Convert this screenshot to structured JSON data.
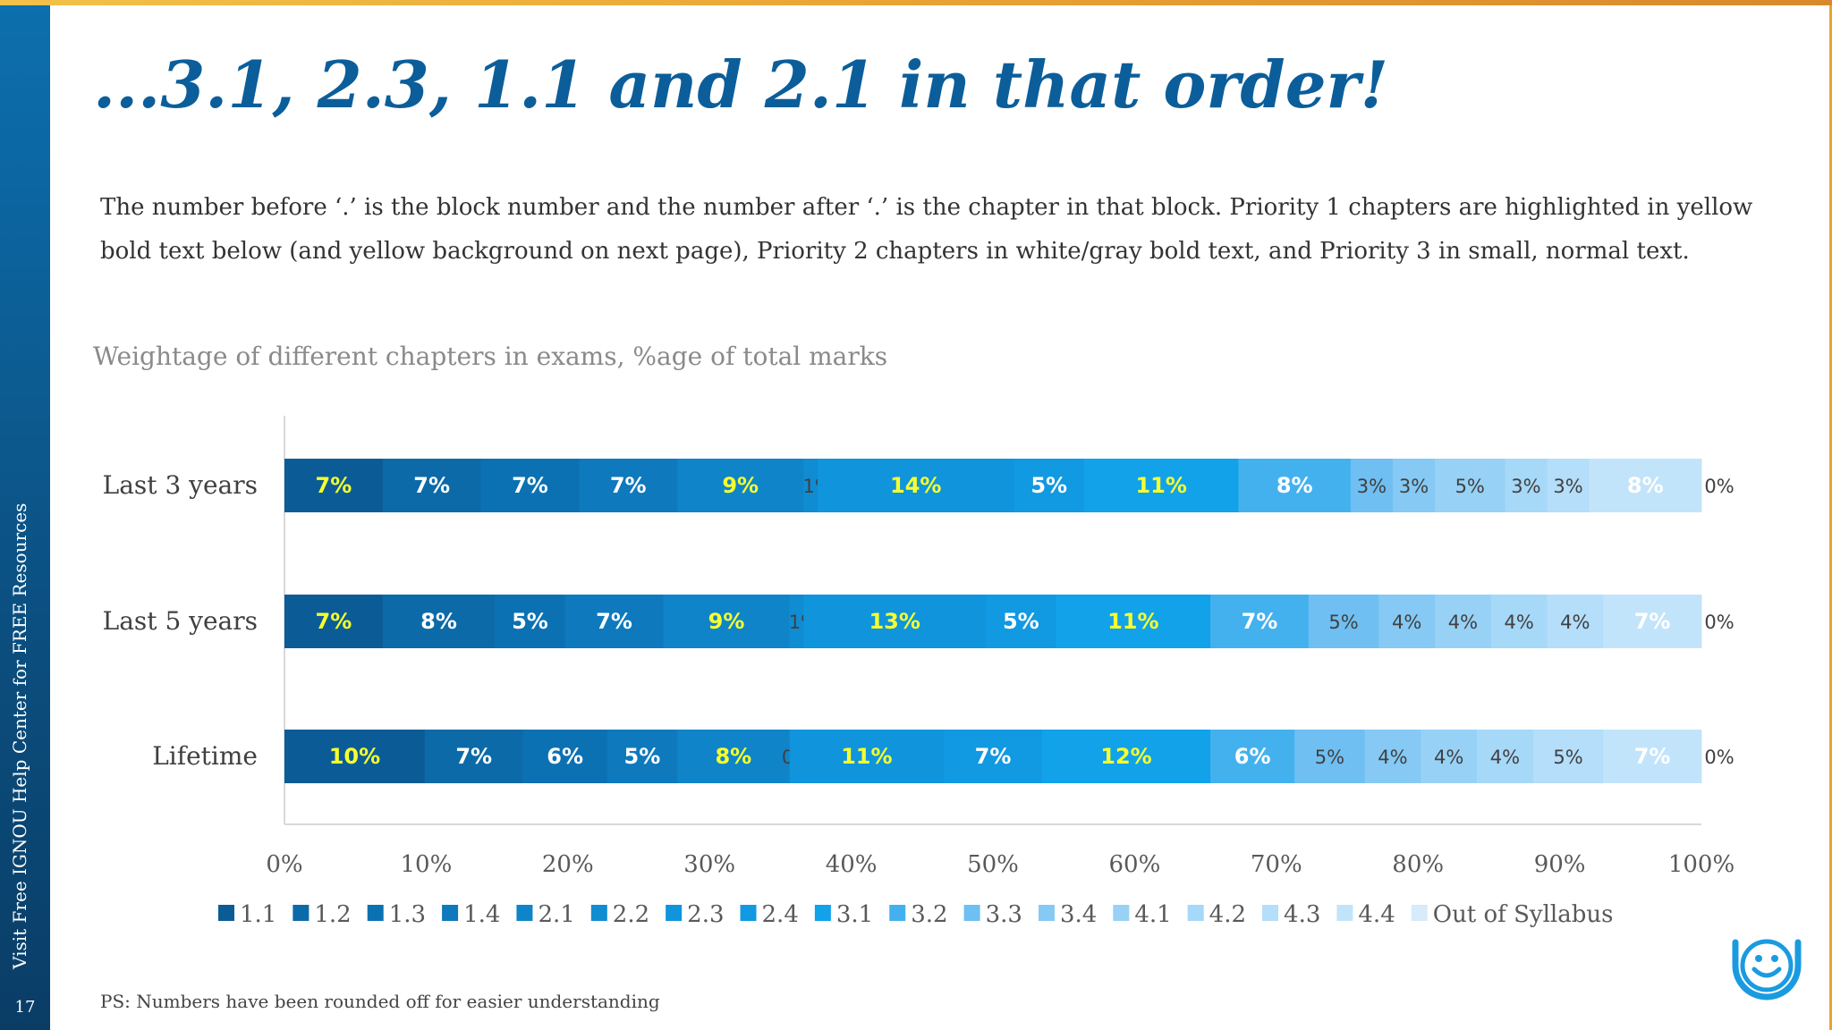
{
  "slide": {
    "title": "...3.1, 2.3, 1.1 and 2.1 in that order!",
    "intro": "The number before ‘.’ is the block number and the number after ‘.’ is the chapter in that block. Priority 1 chapters are highlighted in yellow bold text below (and yellow background on next page), Priority 2 chapters in white/gray bold text, and Priority 3 in small, normal text.",
    "sidebar_text": "Visit Free IGNOU Help Center for FREE Resources",
    "page_number": "17",
    "footnote": "PS:  Numbers have been rounded off for easier understanding",
    "logo_icon": "smiley-logo-icon"
  },
  "chart_data": {
    "type": "bar",
    "orientation": "horizontal",
    "stacked": true,
    "title": "Weightage of different chapters in exams, %age of total marks",
    "categories": [
      "Last 3 years",
      "Last 5 years",
      "Lifetime"
    ],
    "xlim": [
      0,
      100
    ],
    "x_ticks": [
      "0%",
      "10%",
      "20%",
      "30%",
      "40%",
      "50%",
      "60%",
      "70%",
      "80%",
      "90%",
      "100%"
    ],
    "legend_position": "bottom",
    "grid": false,
    "series": [
      {
        "name": "1.1",
        "color": "#0b5c96",
        "values": [
          7,
          7,
          10
        ],
        "labels": [
          "7%",
          "7%",
          "10%"
        ],
        "style": [
          "yellow",
          "yellow",
          "yellow"
        ]
      },
      {
        "name": "1.2",
        "color": "#0c6aa8",
        "values": [
          7,
          8,
          7
        ],
        "labels": [
          "7%",
          "8%",
          "7%"
        ],
        "style": [
          "white",
          "white",
          "white"
        ]
      },
      {
        "name": "1.3",
        "color": "#0c71b3",
        "values": [
          7,
          5,
          6
        ],
        "labels": [
          "7%",
          "5%",
          "6%"
        ],
        "style": [
          "white",
          "white",
          "white"
        ]
      },
      {
        "name": "1.4",
        "color": "#0e79bd",
        "values": [
          7,
          7,
          5
        ],
        "labels": [
          "7%",
          "7%",
          "5%"
        ],
        "style": [
          "white",
          "white",
          "white"
        ]
      },
      {
        "name": "2.1",
        "color": "#0f84c9",
        "values": [
          9,
          9,
          8
        ],
        "labels": [
          "9%",
          "9%",
          "8%"
        ],
        "style": [
          "yellow",
          "yellow",
          "yellow"
        ]
      },
      {
        "name": "2.2",
        "color": "#108cd2",
        "values": [
          1,
          1,
          0
        ],
        "labels": [
          "1%",
          "1%",
          "0%"
        ],
        "style": [
          "small",
          "small",
          "small"
        ]
      },
      {
        "name": "2.3",
        "color": "#1094dc",
        "values": [
          14,
          13,
          11
        ],
        "labels": [
          "14%",
          "13%",
          "11%"
        ],
        "style": [
          "yellow",
          "yellow",
          "yellow"
        ]
      },
      {
        "name": "2.4",
        "color": "#1199e2",
        "values": [
          5,
          5,
          7
        ],
        "labels": [
          "5%",
          "5%",
          "7%"
        ],
        "style": [
          "white",
          "white",
          "white"
        ]
      },
      {
        "name": "3.1",
        "color": "#11a2ea",
        "values": [
          11,
          11,
          12
        ],
        "labels": [
          "11%",
          "11%",
          "12%"
        ],
        "style": [
          "yellow",
          "yellow",
          "yellow"
        ]
      },
      {
        "name": "3.2",
        "color": "#44b1ef",
        "values": [
          8,
          7,
          6
        ],
        "labels": [
          "8%",
          "7%",
          "6%"
        ],
        "style": [
          "white",
          "white",
          "white"
        ]
      },
      {
        "name": "3.3",
        "color": "#6fbff2",
        "values": [
          3,
          5,
          5
        ],
        "labels": [
          "3%",
          "5%",
          "5%"
        ],
        "style": [
          "small",
          "small",
          "small"
        ]
      },
      {
        "name": "3.4",
        "color": "#85c9f4",
        "values": [
          3,
          4,
          4
        ],
        "labels": [
          "3%",
          "4%",
          "4%"
        ],
        "style": [
          "small",
          "small",
          "small"
        ]
      },
      {
        "name": "4.1",
        "color": "#97d1f6",
        "values": [
          5,
          4,
          4
        ],
        "labels": [
          "5%",
          "4%",
          "4%"
        ],
        "style": [
          "small",
          "small",
          "small"
        ]
      },
      {
        "name": "4.2",
        "color": "#a6d8f8",
        "values": [
          3,
          4,
          4
        ],
        "labels": [
          "3%",
          "4%",
          "4%"
        ],
        "style": [
          "small",
          "small",
          "small"
        ]
      },
      {
        "name": "4.3",
        "color": "#b4def9",
        "values": [
          3,
          4,
          5
        ],
        "labels": [
          "3%",
          "4%",
          "5%"
        ],
        "style": [
          "small",
          "small",
          "small"
        ]
      },
      {
        "name": "4.4",
        "color": "#c2e4fa",
        "values": [
          8,
          7,
          7
        ],
        "labels": [
          "8%",
          "7%",
          "7%"
        ],
        "style": [
          "white",
          "white",
          "white"
        ]
      },
      {
        "name": "Out of Syllabus",
        "color": "#d6ebfb",
        "values": [
          0,
          0,
          0
        ],
        "labels": [
          "0%",
          "0%",
          "0%"
        ],
        "style": [
          "small",
          "small",
          "small"
        ]
      }
    ]
  }
}
